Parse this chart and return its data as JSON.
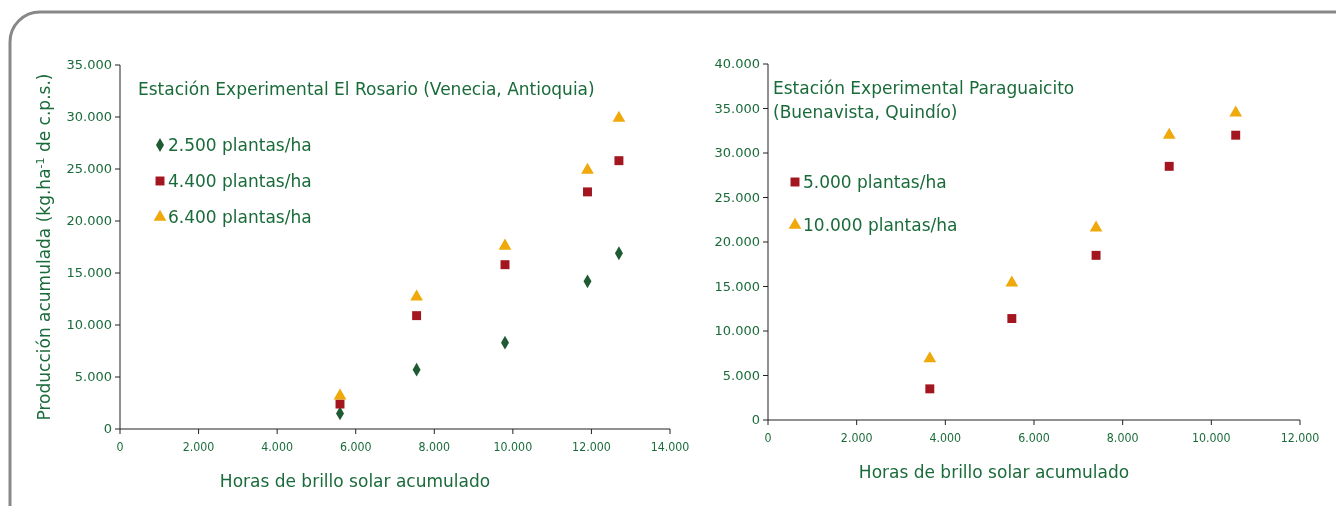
{
  "chart_data": [
    {
      "type": "scatter",
      "title": "Estación Experimental El Rosario (Venecia, Antioquia)",
      "xlabel": "Horas de brillo solar acumulado",
      "ylabel": "Producción acumulada (kg.ha$^{-1}$ de c.p.s.)",
      "x": [
        5600,
        7550,
        9800,
        11900,
        12700
      ],
      "series": [
        {
          "name": "2.500 plantas/ha",
          "color": "#1e5a32",
          "marker": "diamond",
          "values": [
            1500,
            5700,
            8300,
            14200,
            16900
          ]
        },
        {
          "name": "4.400 plantas/ha",
          "color": "#a3151f",
          "marker": "square",
          "values": [
            2400,
            10900,
            15800,
            22800,
            25800
          ]
        },
        {
          "name": "6.400 plantas/ha",
          "color": "#efa90a",
          "marker": "triangle",
          "values": [
            3200,
            12700,
            17600,
            24900,
            29900
          ]
        }
      ],
      "xlim": [
        0,
        14000
      ],
      "xticks": [
        0,
        {
          "value": 2000,
          "label": "2.000"
        },
        {
          "value": 4000,
          "label": "4.000"
        },
        {
          "value": 6000,
          "label": "6.000"
        },
        {
          "value": 8000,
          "label": "8.000"
        },
        {
          "value": 10000,
          "label": "10.000"
        },
        {
          "value": 12000,
          "label": "12.000"
        },
        {
          "value": 14000,
          "label": "14.000"
        }
      ],
      "ylim": [
        0,
        35000
      ],
      "yticks": [
        0,
        {
          "value": 5000,
          "label": "5.000"
        },
        {
          "value": 10000,
          "label": "10.000"
        },
        {
          "value": 15000,
          "label": "15.000"
        },
        {
          "value": 20000,
          "label": "20.000"
        },
        {
          "value": 25000,
          "label": "25.000"
        },
        {
          "value": 30000,
          "label": "30.000"
        },
        {
          "value": 35000,
          "label": "35.000"
        }
      ],
      "grid": false,
      "legend": "top left"
    },
    {
      "type": "scatter",
      "title": "Estación Experimental Paraguaicito (Buenavista, Quindío)",
      "xlabel": "Horas de brillo solar acumulado",
      "x": [
        3650,
        5500,
        7400,
        9050,
        10550
      ],
      "series": [
        {
          "name": "5.000 plantas/ha",
          "color": "#a3151f",
          "marker": "square",
          "values": [
            3500,
            11400,
            18500,
            28500,
            32000
          ]
        },
        {
          "name": "10.000 plantas/ha",
          "color": "#efa90a",
          "marker": "triangle",
          "values": [
            6900,
            15400,
            21600,
            32000,
            34500
          ]
        }
      ],
      "xlim": [
        0,
        12000
      ],
      "xticks": [
        0,
        {
          "value": 2000,
          "label": "2.000"
        },
        {
          "value": 4000,
          "label": "4.000"
        },
        {
          "value": 6000,
          "label": "6.000"
        },
        {
          "value": 8000,
          "label": "8.000"
        },
        {
          "value": 10000,
          "label": "10.000"
        },
        {
          "value": 12000,
          "label": "12.000"
        }
      ],
      "ylim": [
        0,
        40000
      ],
      "yticks": [
        0,
        {
          "value": 5000,
          "label": "5.000"
        },
        {
          "value": 10000,
          "label": "10.000"
        },
        {
          "value": 15000,
          "label": "15.000"
        },
        {
          "value": 20000,
          "label": "20.000"
        },
        {
          "value": 25000,
          "label": "25.000"
        },
        {
          "value": 30000,
          "label": "30.000"
        },
        {
          "value": 35000,
          "label": "35.000"
        },
        {
          "value": 40000,
          "label": "40.000"
        }
      ],
      "grid": false,
      "legend": "top left"
    }
  ]
}
